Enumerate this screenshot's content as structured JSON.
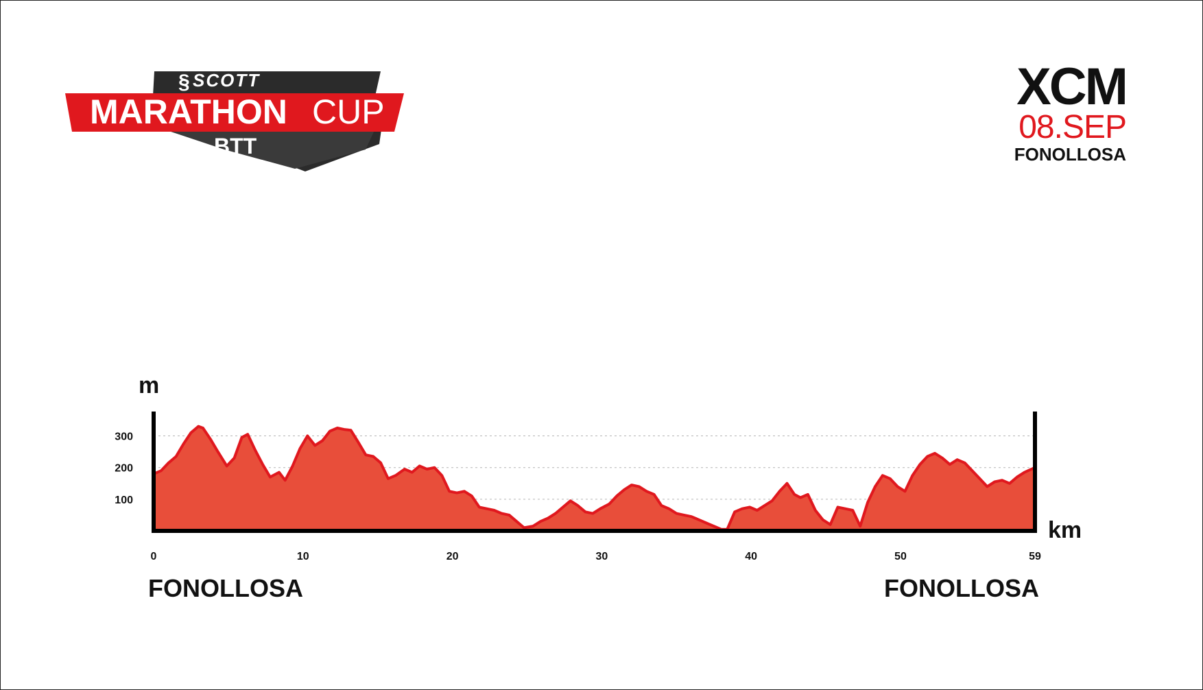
{
  "logo": {
    "brand": "SCOTT",
    "title_main": "MARATHON",
    "title_cup": "CUP",
    "subtitle": "BTT"
  },
  "event": {
    "type": "XCM",
    "date": "08.SEP",
    "place": "FONOLLOSA"
  },
  "colors": {
    "accent": "#e0181e",
    "fill": "#e84e3a",
    "logo_dark": "#2b2b2b",
    "text": "#111111"
  },
  "chart_data": {
    "type": "area",
    "xlabel": "km",
    "ylabel": "m",
    "xlim": [
      0,
      59
    ],
    "ylim": [
      0,
      390
    ],
    "x_ticks": [
      0,
      10,
      20,
      30,
      40,
      50,
      59
    ],
    "y_ticks": [
      100,
      200,
      300
    ],
    "gridlines": "dashed horizontal at y ticks",
    "start_label": "FONOLLOSA",
    "end_label": "FONOLLOSA",
    "series": [
      {
        "x": [
          0,
          0.5,
          1,
          1.5,
          2,
          2.5,
          3,
          3.3,
          3.8,
          4.3,
          4.9,
          5.4,
          5.9,
          6.3,
          6.8,
          7.3,
          7.8,
          8.4,
          8.8,
          9.3,
          9.8,
          10.3,
          10.8,
          11.3,
          11.8,
          12.3,
          12.8,
          13.2,
          13.7,
          14.2,
          14.7,
          15.2,
          15.7,
          16.2,
          16.8,
          17.3,
          17.8,
          18.3,
          18.8,
          19.3,
          19.8,
          20.3,
          20.8,
          21.3,
          21.8,
          22.3,
          22.8,
          23.3,
          23.8,
          24.3,
          24.8,
          25.4,
          25.9,
          26.4,
          26.9,
          27.4,
          27.9,
          28.4,
          28.9,
          29.4,
          29.9,
          30.5,
          31.0,
          31.5,
          32.0,
          32.5,
          33.0,
          33.5,
          34.0,
          34.5,
          35.0,
          35.5,
          36.0,
          36.5,
          37.0,
          37.5,
          38.0,
          38.4,
          38.9,
          39.4,
          39.9,
          40.4,
          40.9,
          41.4,
          41.9,
          42.4,
          42.9,
          43.3,
          43.8,
          44.3,
          44.8,
          45.3,
          45.8,
          46.3,
          46.8,
          47.3,
          47.8,
          48.3,
          48.8,
          49.3,
          49.8,
          50.3,
          50.8,
          51.3,
          51.8,
          52.3,
          52.8,
          53.3,
          53.8,
          54.3,
          54.8,
          55.3,
          55.8,
          56.3,
          56.8,
          57.3,
          57.8,
          58.3,
          59
        ],
        "values": [
          180,
          190,
          215,
          235,
          275,
          310,
          330,
          325,
          290,
          250,
          205,
          230,
          295,
          305,
          255,
          210,
          170,
          185,
          160,
          205,
          260,
          300,
          270,
          285,
          315,
          325,
          320,
          318,
          280,
          240,
          235,
          215,
          165,
          175,
          195,
          185,
          205,
          195,
          200,
          175,
          125,
          120,
          125,
          110,
          75,
          70,
          65,
          55,
          50,
          30,
          10,
          15,
          30,
          40,
          55,
          75,
          95,
          80,
          60,
          55,
          70,
          85,
          110,
          130,
          145,
          140,
          125,
          115,
          80,
          70,
          55,
          50,
          45,
          35,
          25,
          15,
          5,
          5,
          60,
          70,
          75,
          65,
          80,
          95,
          125,
          150,
          115,
          105,
          115,
          65,
          35,
          20,
          75,
          70,
          65,
          15,
          90,
          140,
          175,
          165,
          140,
          125,
          175,
          210,
          235,
          245,
          230,
          210,
          225,
          215,
          190,
          165,
          140,
          155,
          160,
          150,
          170,
          185,
          200
        ]
      }
    ]
  }
}
